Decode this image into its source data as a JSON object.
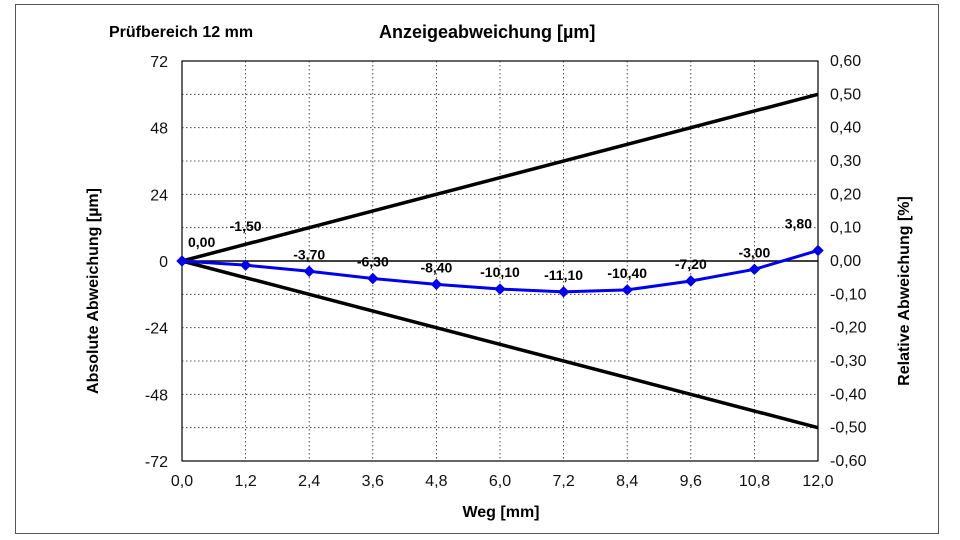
{
  "chart_data": {
    "type": "line",
    "title": "Anzeigeabweichung [µm]",
    "subtitle": "Prüfbereich  12 mm",
    "xlabel": "Weg [mm]",
    "ylabel": "Absolute Abweichung [µm]",
    "y2label": "Relative Abweichung [%]",
    "xlim": [
      0,
      12
    ],
    "ylim": [
      -72,
      72
    ],
    "y2lim": [
      -0.6,
      0.6
    ],
    "grid": true,
    "x_ticks": [
      "0,0",
      "1,2",
      "2,4",
      "3,6",
      "4,8",
      "6,0",
      "7,2",
      "8,4",
      "9,6",
      "10,8",
      "12,0"
    ],
    "y_ticks": [
      "72",
      "48",
      "24",
      "0",
      "-24",
      "-48",
      "-72"
    ],
    "y2_ticks": [
      "0,60",
      "0,50",
      "0,40",
      "0,30",
      "0,20",
      "0,10",
      "0,00",
      "-0,10",
      "-0,20",
      "-0,30",
      "-0,40",
      "-0,50",
      "-0,60"
    ],
    "series": [
      {
        "x": [
          0,
          1.2,
          2.4,
          3.6,
          4.8,
          6.0,
          7.2,
          8.4,
          9.6,
          10.8,
          12.0
        ],
        "values": [
          0.0,
          -1.5,
          -3.7,
          -6.3,
          -8.4,
          -10.1,
          -11.1,
          -10.4,
          -7.2,
          -3.0,
          3.8
        ],
        "labels": [
          "0,00",
          "-1,50",
          "-3,70",
          "-6,30",
          "-8,40",
          "-10,10",
          "-11,10",
          "-10,40",
          "-7,20",
          "-3,00",
          "3,80"
        ],
        "color": "#0000ee"
      }
    ],
    "limit_lines": [
      {
        "x": [
          0,
          12
        ],
        "values": [
          0,
          60
        ],
        "color": "#000000"
      },
      {
        "x": [
          0,
          12
        ],
        "values": [
          0,
          -60
        ],
        "color": "#000000"
      }
    ]
  }
}
